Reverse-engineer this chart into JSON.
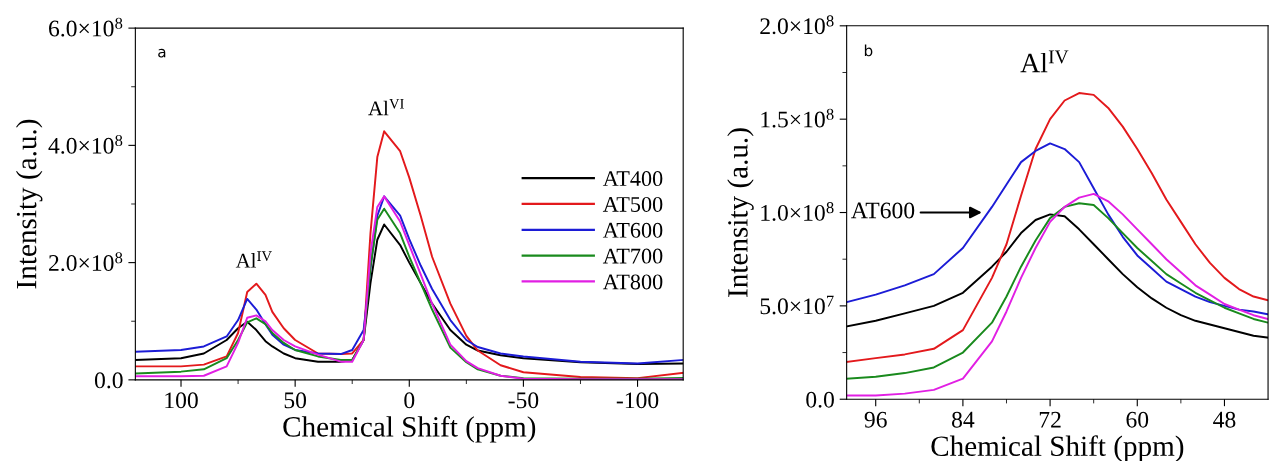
{
  "chart_data": [
    {
      "type": "line",
      "xlabel": "Chemical Shift (ppm)",
      "ylabel": "Intensity (a.u.)",
      "legend": "right",
      "grid": false,
      "marker": "none",
      "line_style": "solid",
      "xlim": [
        120,
        -120
      ],
      "xticks": [
        100,
        {
          "value": 75,
          "label": null
        },
        50,
        {
          "value": 25,
          "label": null
        },
        0,
        {
          "value": -25,
          "label": null
        },
        -50,
        {
          "value": -75,
          "label": null
        },
        -100
      ],
      "ylim": [
        0,
        600000000
      ],
      "yticks": [
        {
          "value": 0,
          "label": "0.0"
        },
        {
          "value": 100000000,
          "label": null
        },
        {
          "value": 200000000,
          "label": "2.0×10$^{8}$"
        },
        {
          "value": 300000000,
          "label": null
        },
        {
          "value": 400000000,
          "label": "4.0×10$^{8}$"
        },
        {
          "value": 500000000,
          "label": null
        },
        {
          "value": 600000000,
          "label": "6.0×10$^{8}$"
        }
      ],
      "x": [
        120,
        100,
        90,
        80,
        75,
        71,
        67,
        63,
        60,
        55,
        50,
        40,
        30,
        25,
        20,
        17,
        14,
        11,
        4,
        0,
        -5,
        -10,
        -18,
        -25,
        -30,
        -40,
        -50,
        -75,
        -100,
        -120
      ],
      "series": [
        {
          "name": "AT400",
          "color": "#000000",
          "values": [
            34000000.0,
            37000000.0,
            45000000.0,
            68000000.0,
            88000000.0,
            99000000.0,
            85000000.0,
            66000000.0,
            57000000.0,
            45000000.0,
            37000000.0,
            31000000.0,
            31000000.0,
            34000000.0,
            68000000.0,
            165000000.0,
            239000000.0,
            265000000.0,
            230000000.0,
            200000000.0,
            165000000.0,
            130000000.0,
            85000000.0,
            60000000.0,
            50000000.0,
            42000000.0,
            37000000.0,
            30000000.0,
            27000000.0,
            28000000.0
          ]
        },
        {
          "name": "AT500",
          "color": "#e3191c",
          "values": [
            23000000.0,
            23000000.0,
            26000000.0,
            40000000.0,
            80000000.0,
            150000000.0,
            164000000.0,
            145000000.0,
            116000000.0,
            88000000.0,
            68000000.0,
            45000000.0,
            44000000.0,
            45000000.0,
            68000000.0,
            250000000.0,
            380000000.0,
            424000000.0,
            390000000.0,
            345000000.0,
            280000000.0,
            210000000.0,
            130000000.0,
            75000000.0,
            50000000.0,
            25000000.0,
            13000000.0,
            5000000.0,
            3000000.0,
            12000000.0
          ]
        },
        {
          "name": "AT600",
          "color": "#1c1cd6",
          "values": [
            48000000.0,
            51000000.0,
            57000000.0,
            74000000.0,
            102000000.0,
            138000000.0,
            120000000.0,
            95000000.0,
            77000000.0,
            60000000.0,
            51000000.0,
            45000000.0,
            44000000.0,
            51000000.0,
            85000000.0,
            190000000.0,
            280000000.0,
            313000000.0,
            280000000.0,
            240000000.0,
            195000000.0,
            155000000.0,
            102000000.0,
            68000000.0,
            56000000.0,
            45000000.0,
            40000000.0,
            31000000.0,
            28000000.0,
            34000000.0
          ]
        },
        {
          "name": "AT700",
          "color": "#198a1d",
          "values": [
            11000000.0,
            14000000.0,
            18000000.0,
            37000000.0,
            68000000.0,
            98000000.0,
            105000000.0,
            95000000.0,
            80000000.0,
            63000000.0,
            51000000.0,
            40000000.0,
            34000000.0,
            34000000.0,
            68000000.0,
            193000000.0,
            273000000.0,
            292000000.0,
            250000000.0,
            210000000.0,
            165000000.0,
            120000000.0,
            55000000.0,
            30000000.0,
            18000000.0,
            7000000.0,
            3000000.0,
            2000000.0,
            2000000.0,
            3000000.0
          ]
        },
        {
          "name": "AT800",
          "color": "#e11fe3",
          "values": [
            6000000.0,
            6000000.0,
            7000000.0,
            23000000.0,
            63000000.0,
            106000000.0,
            110000000.0,
            100000000.0,
            85000000.0,
            68000000.0,
            57000000.0,
            43000000.0,
            31000000.0,
            31000000.0,
            68000000.0,
            216000000.0,
            295000000.0,
            313000000.0,
            270000000.0,
            230000000.0,
            180000000.0,
            130000000.0,
            60000000.0,
            32000000.0,
            20000000.0,
            7000000.0,
            2000000.0,
            1000000.0,
            1000000.0,
            1000000.0
          ]
        }
      ],
      "annotations": [
        "a",
        {
          "text": "Al$^{IV}$",
          "x": 68,
          "y": 165000000
        },
        {
          "text": "Al$^{VI}$",
          "x": 10,
          "y": 425000000
        }
      ]
    },
    {
      "type": "line",
      "xlabel": "Chemical Shift (ppm)",
      "ylabel": "Intensity (a.u.)",
      "grid": false,
      "marker": "none",
      "line_style": "solid",
      "xlim": [
        100,
        42
      ],
      "xticks": [
        96,
        {
          "value": 90,
          "label": null
        },
        84,
        {
          "value": 78,
          "label": null
        },
        72,
        {
          "value": 66,
          "label": null
        },
        60,
        {
          "value": 54,
          "label": null
        },
        48
      ],
      "ylim": [
        0,
        200000000
      ],
      "yticks": [
        {
          "value": 0,
          "label": "0.0"
        },
        {
          "value": 25000000,
          "label": null
        },
        {
          "value": 50000000,
          "label": "5.0×10$^{7}$"
        },
        {
          "value": 75000000,
          "label": null
        },
        {
          "value": 100000000,
          "label": "1.0×10$^{8}$"
        },
        {
          "value": 125000000,
          "label": null
        },
        {
          "value": 150000000,
          "label": "1.5×10$^{8}$"
        },
        {
          "value": 175000000,
          "label": null
        },
        {
          "value": 200000000,
          "label": "2.0×10$^{8}$"
        }
      ],
      "x": [
        100,
        96,
        92,
        88,
        84,
        80,
        78,
        76,
        74,
        72,
        70,
        68,
        66,
        64,
        62,
        60,
        58,
        56,
        54,
        52,
        50,
        48,
        46,
        44,
        42
      ],
      "series": [
        {
          "color": "#000000",
          "values": [
            39000000.0,
            42000000.0,
            46000000.0,
            50000000.0,
            57000000.0,
            71000000.0,
            79000000.0,
            89000000.0,
            96000000.0,
            99000000.0,
            98000000.0,
            91000000.0,
            83000000.0,
            75000000.0,
            67000000.0,
            60000000.0,
            54000000.0,
            49000000.0,
            45000000.0,
            42000000.0,
            40000000.0,
            38000000.0,
            36000000.0,
            34000000.0,
            33000000.0
          ]
        },
        {
          "color": "#e3191c",
          "values": [
            20000000.0,
            22000000.0,
            24000000.0,
            27000000.0,
            37000000.0,
            65000000.0,
            83000000.0,
            109000000.0,
            134000000.0,
            150000000.0,
            160000000.0,
            164000000.0,
            163000000.0,
            156000000.0,
            146000000.0,
            134000000.0,
            121000000.0,
            107000000.0,
            95000000.0,
            83000000.0,
            73000000.0,
            65000000.0,
            59000000.0,
            55000000.0,
            53000000.0
          ]
        },
        {
          "color": "#1c1cd6",
          "values": [
            52000000.0,
            56000000.0,
            61000000.0,
            67000000.0,
            81000000.0,
            103000000.0,
            115000000.0,
            127000000.0,
            133000000.0,
            137000000.0,
            134000000.0,
            127000000.0,
            113000000.0,
            99000000.0,
            87000000.0,
            77000000.0,
            70000000.0,
            63000000.0,
            59000000.0,
            55000000.0,
            52000000.0,
            50000000.0,
            48000000.0,
            47000000.0,
            45500000.0
          ]
        },
        {
          "color": "#198a1d",
          "values": [
            11000000.0,
            12000000.0,
            14000000.0,
            17000000.0,
            25000000.0,
            41000000.0,
            55000000.0,
            71000000.0,
            85000000.0,
            97000000.0,
            103000000.0,
            105000000.0,
            104000000.0,
            97000000.0,
            89000000.0,
            81000000.0,
            74000000.0,
            67000000.0,
            62000000.0,
            57000000.0,
            53000000.0,
            49000000.0,
            46000000.0,
            43000000.0,
            41000000.0
          ]
        },
        {
          "color": "#e11fe3",
          "values": [
            2000000.0,
            2000000.0,
            3000000.0,
            5000000.0,
            11000000.0,
            31000000.0,
            47000000.0,
            65000000.0,
            81000000.0,
            95000000.0,
            103000000.0,
            108000000.0,
            110000000.0,
            106000000.0,
            99000000.0,
            91000000.0,
            83000000.0,
            75000000.0,
            68000000.0,
            61000000.0,
            56000000.0,
            51000000.0,
            48000000.0,
            45000000.0,
            43000000.0
          ]
        }
      ],
      "annotations": [
        "b",
        "Al$^{IV}$",
        {
          "text": "AT600",
          "x": 81.4,
          "y": 100000000
        }
      ]
    }
  ]
}
